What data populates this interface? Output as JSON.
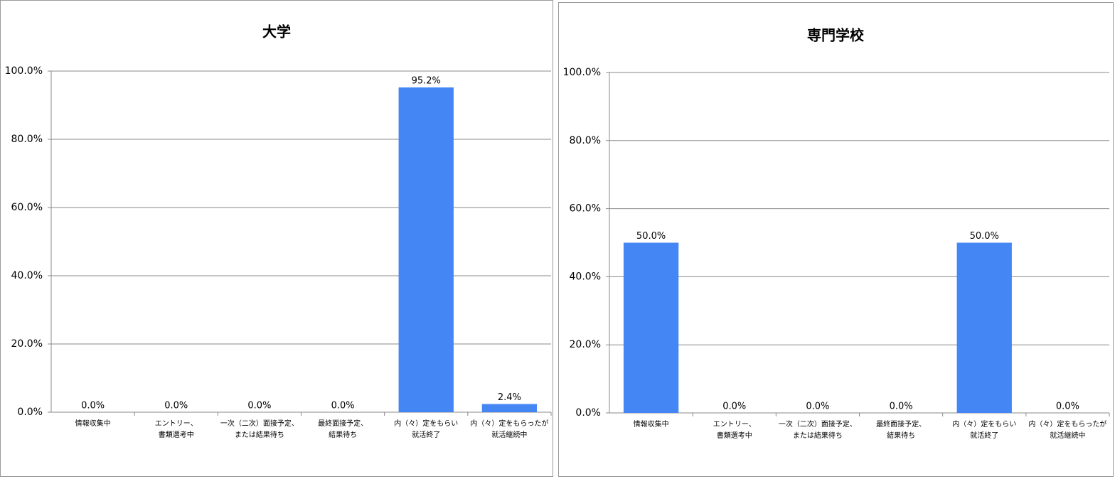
{
  "chart_data": [
    {
      "type": "bar",
      "title": "大学",
      "categories": [
        "情報収集中",
        "エントリー、\n書類選考中",
        "一次（二次）面接予定、\nまたは結果待ち",
        "最終面接予定、\n結果待ち",
        "内（々）定をもらい\n就活終了",
        "内（々）定をもらったが\n就活継続中"
      ],
      "values": [
        0,
        0,
        0,
        0,
        95.2,
        2.4
      ],
      "value_labels": [
        "0.0%",
        "0.0%",
        "0.0%",
        "0.0%",
        "95.2%",
        "2.4%"
      ],
      "color": "#4487f4",
      "ylim": [
        0,
        100
      ],
      "yticks": [
        {
          "value": 0,
          "label": "0.0%"
        },
        {
          "value": 20,
          "label": "20.0%"
        },
        {
          "value": 40,
          "label": "40.0%"
        },
        {
          "value": 60,
          "label": "60.0%"
        },
        {
          "value": 80,
          "label": "80.0%"
        },
        {
          "value": 100,
          "label": "100.0%"
        }
      ],
      "grid": true
    },
    {
      "type": "bar",
      "title": "専門学校",
      "categories": [
        "情報収集中",
        "エントリー、\n書類選考中",
        "一次（二次）面接予定、\nまたは結果待ち",
        "最終面接予定、\n結果待ち",
        "内（々）定をもらい\n就活終了",
        "内（々）定をもらったが\n就活継続中"
      ],
      "values": [
        50,
        0,
        0,
        0,
        50,
        0
      ],
      "value_labels": [
        "50.0%",
        "0.0%",
        "0.0%",
        "0.0%",
        "50.0%",
        "0.0%"
      ],
      "color": "#4487f4",
      "ylim": [
        0,
        100
      ],
      "yticks": [
        {
          "value": 0,
          "label": "0.0%"
        },
        {
          "value": 20,
          "label": "20.0%"
        },
        {
          "value": 40,
          "label": "40.0%"
        },
        {
          "value": 60,
          "label": "60.0%"
        },
        {
          "value": 80,
          "label": "80.0%"
        },
        {
          "value": 100,
          "label": "100.0%"
        }
      ],
      "grid": true
    }
  ]
}
